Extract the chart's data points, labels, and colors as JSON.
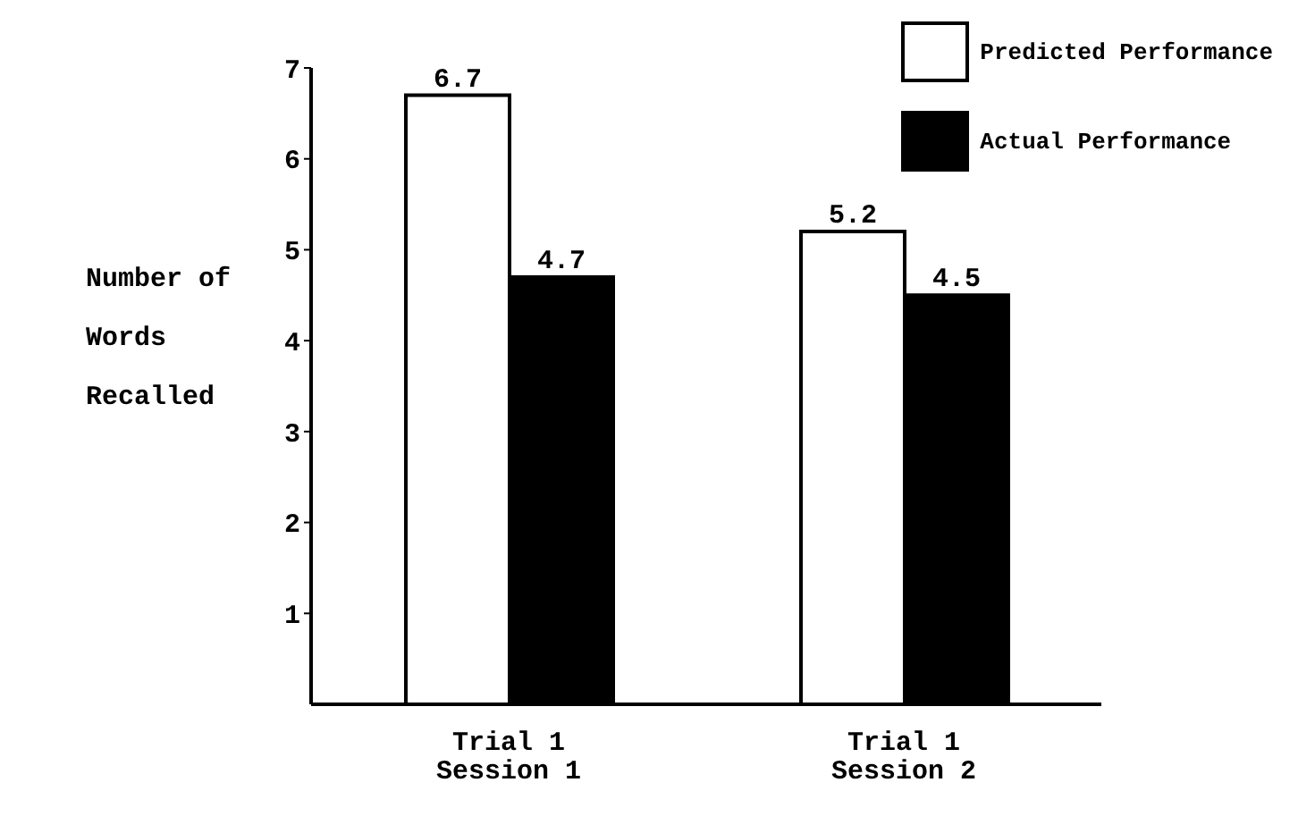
{
  "chart_data": {
    "type": "bar",
    "ylabel": "Number of\nWords\nRecalled",
    "categories": [
      "Trial 1\nSession 1",
      "Trial 1\nSession 2"
    ],
    "series": [
      {
        "name": "Predicted Performance",
        "color": "#ffffff",
        "values": [
          6.7,
          5.2
        ]
      },
      {
        "name": "Actual Performance",
        "color": "#000000",
        "values": [
          4.7,
          4.5
        ]
      }
    ],
    "ylim": [
      0,
      7
    ],
    "yticks": [
      1,
      2,
      3,
      4,
      5,
      6,
      7
    ],
    "data_labels": true,
    "legend": "top right",
    "grid": false
  }
}
